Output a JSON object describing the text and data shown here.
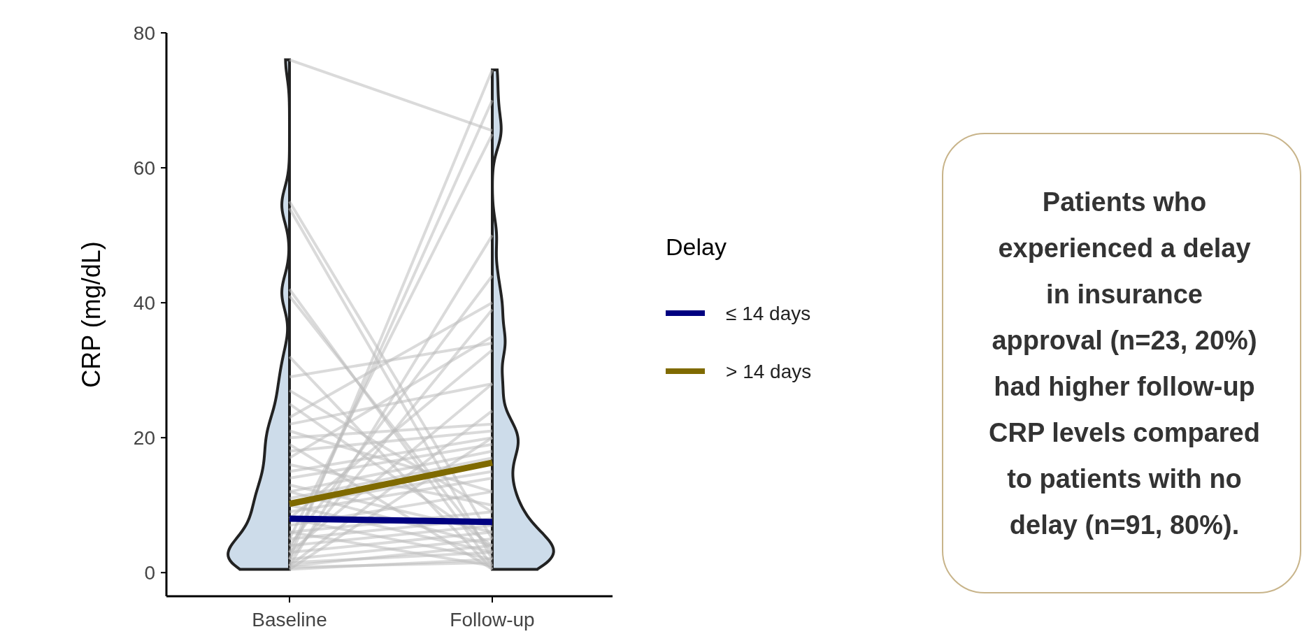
{
  "chart_data": [
    {
      "type": "line",
      "ylabel": "CRP (mg/dL)",
      "categories": [
        "Baseline",
        "Follow-up"
      ],
      "ylim": [
        -3.5,
        80
      ],
      "yticks": [
        0,
        20,
        40,
        60,
        80
      ],
      "legend_title": "Delay",
      "legend": "right",
      "grid": false,
      "marker": "none",
      "line_style": "solid",
      "series": [
        {
          "color": "#bbbbbb",
          "values": [
            76,
            65.5
          ]
        },
        {
          "color": "#bbbbbb",
          "values": [
            55,
            5
          ]
        },
        {
          "color": "#bbbbbb",
          "values": [
            54,
            2
          ]
        },
        {
          "color": "#bbbbbb",
          "values": [
            42,
            1
          ]
        },
        {
          "color": "#bbbbbb",
          "values": [
            41,
            3
          ]
        },
        {
          "color": "#bbbbbb",
          "values": [
            32,
            0.5
          ]
        },
        {
          "color": "#bbbbbb",
          "values": [
            29,
            34
          ]
        },
        {
          "color": "#bbbbbb",
          "values": [
            23,
            40
          ]
        },
        {
          "color": "#bbbbbb",
          "values": [
            22,
            28
          ]
        },
        {
          "color": "#bbbbbb",
          "values": [
            2,
            74.5
          ]
        },
        {
          "color": "#bbbbbb",
          "values": [
            3,
            70
          ]
        },
        {
          "color": "#bbbbbb",
          "values": [
            5,
            65
          ]
        },
        {
          "color": "#bbbbbb",
          "values": [
            1,
            50
          ]
        },
        {
          "color": "#bbbbbb",
          "values": [
            4,
            44
          ]
        },
        {
          "color": "#bbbbbb",
          "values": [
            2,
            39
          ]
        },
        {
          "color": "#bbbbbb",
          "values": [
            17,
            35
          ]
        },
        {
          "color": "#bbbbbb",
          "values": [
            8,
            33
          ]
        },
        {
          "color": "#bbbbbb",
          "values": [
            20,
            22
          ]
        },
        {
          "color": "#bbbbbb",
          "values": [
            18,
            21
          ]
        },
        {
          "color": "#bbbbbb",
          "values": [
            15,
            20
          ]
        },
        {
          "color": "#bbbbbb",
          "values": [
            14,
            19
          ]
        },
        {
          "color": "#bbbbbb",
          "values": [
            12,
            18
          ]
        },
        {
          "color": "#bbbbbb",
          "values": [
            11,
            17
          ]
        },
        {
          "color": "#bbbbbb",
          "values": [
            21,
            12
          ]
        },
        {
          "color": "#bbbbbb",
          "values": [
            16,
            10
          ]
        },
        {
          "color": "#bbbbbb",
          "values": [
            13,
            6
          ]
        },
        {
          "color": "#bbbbbb",
          "values": [
            10,
            15
          ]
        },
        {
          "color": "#bbbbbb",
          "values": [
            9,
            14
          ]
        },
        {
          "color": "#bbbbbb",
          "values": [
            7,
            12
          ]
        },
        {
          "color": "#bbbbbb",
          "values": [
            6,
            9
          ]
        },
        {
          "color": "#bbbbbb",
          "values": [
            5,
            8
          ]
        },
        {
          "color": "#bbbbbb",
          "values": [
            4,
            7
          ]
        },
        {
          "color": "#bbbbbb",
          "values": [
            3,
            6
          ]
        },
        {
          "color": "#bbbbbb",
          "values": [
            2,
            5
          ]
        },
        {
          "color": "#bbbbbb",
          "values": [
            1,
            4
          ]
        },
        {
          "color": "#bbbbbb",
          "values": [
            1.5,
            3
          ]
        },
        {
          "color": "#bbbbbb",
          "values": [
            0.5,
            2
          ]
        },
        {
          "color": "#bbbbbb",
          "values": [
            0.8,
            1.5
          ]
        },
        {
          "color": "#bbbbbb",
          "values": [
            6,
            1
          ]
        },
        {
          "color": "#bbbbbb",
          "values": [
            8,
            2
          ]
        },
        {
          "color": "#bbbbbb",
          "values": [
            10,
            3
          ]
        },
        {
          "color": "#bbbbbb",
          "values": [
            12,
            4
          ]
        },
        {
          "color": "#bbbbbb",
          "values": [
            3,
            28
          ]
        },
        {
          "color": "#bbbbbb",
          "values": [
            1,
            24
          ]
        },
        {
          "color": "#bbbbbb",
          "values": [
            0.5,
            20
          ]
        },
        {
          "color": "#bbbbbb",
          "values": [
            19,
            0.5
          ]
        },
        {
          "color": "#bbbbbb",
          "values": [
            25,
            4
          ]
        },
        {
          "color": "#bbbbbb",
          "values": [
            27,
            9
          ]
        },
        {
          "name": "≤ 14 days",
          "color": "#000080",
          "values": [
            8,
            7.5
          ]
        },
        {
          "name": "> 14 days",
          "color": "#7f6a00",
          "values": [
            10.2,
            16.3
          ]
        }
      ]
    },
    {
      "type": "other",
      "annotations": [
        "Patients who experienced a delay in insurance approval (n=23, 20%) had higher follow-up CRP levels compared to patients with no delay (n=91, 80%)."
      ]
    }
  ]
}
